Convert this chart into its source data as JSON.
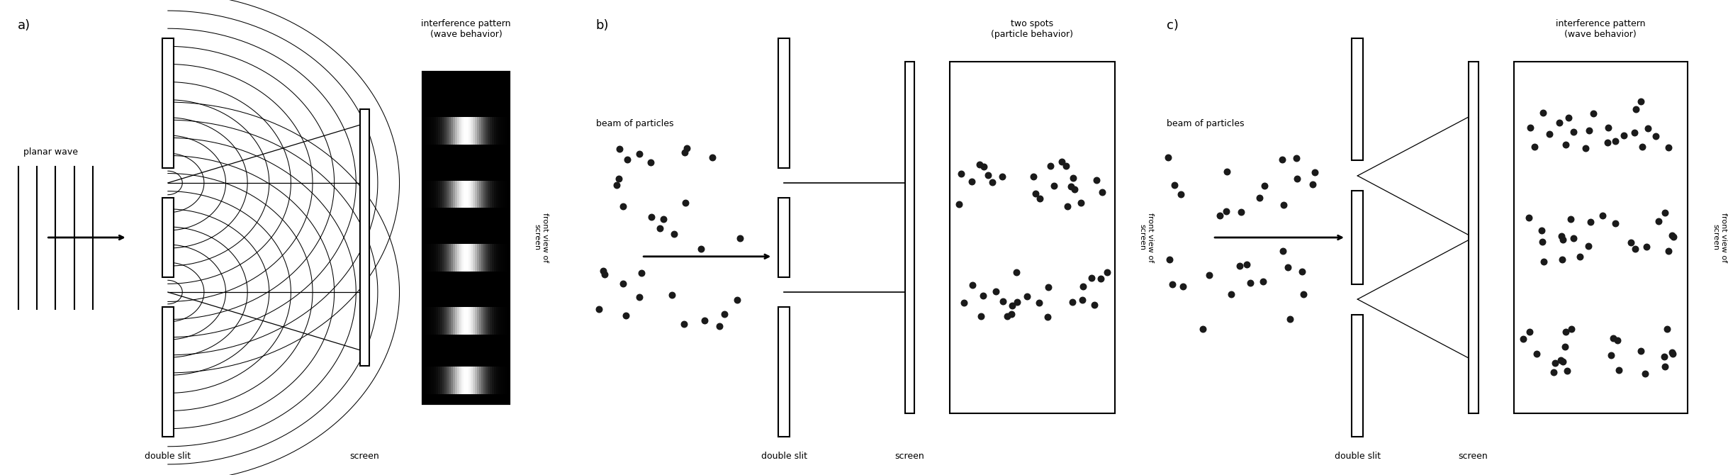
{
  "fig_width": 24.38,
  "fig_height": 6.7,
  "bg_color": "#ffffff",
  "panel_a": {
    "label": "a)",
    "planar_wave_label": "planar wave",
    "double_slit_label": "double slit",
    "screen_label": "screen",
    "pattern_label": "interference pattern\n(wave behavior)",
    "fov_label": "front view of\nscreen"
  },
  "panel_b": {
    "label": "b)",
    "beam_label": "beam of particles",
    "double_slit_label": "double slit",
    "screen_label": "screen",
    "pattern_label": "two spots\n(particle behavior)",
    "fov_label": "front view of\nscreen"
  },
  "panel_c": {
    "label": "c)",
    "beam_label": "beam of particles",
    "double_slit_label": "double slit",
    "screen_label": "screen",
    "pattern_label": "interference pattern\n(wave behavior)",
    "fov_label": "front view of\nscreen"
  }
}
